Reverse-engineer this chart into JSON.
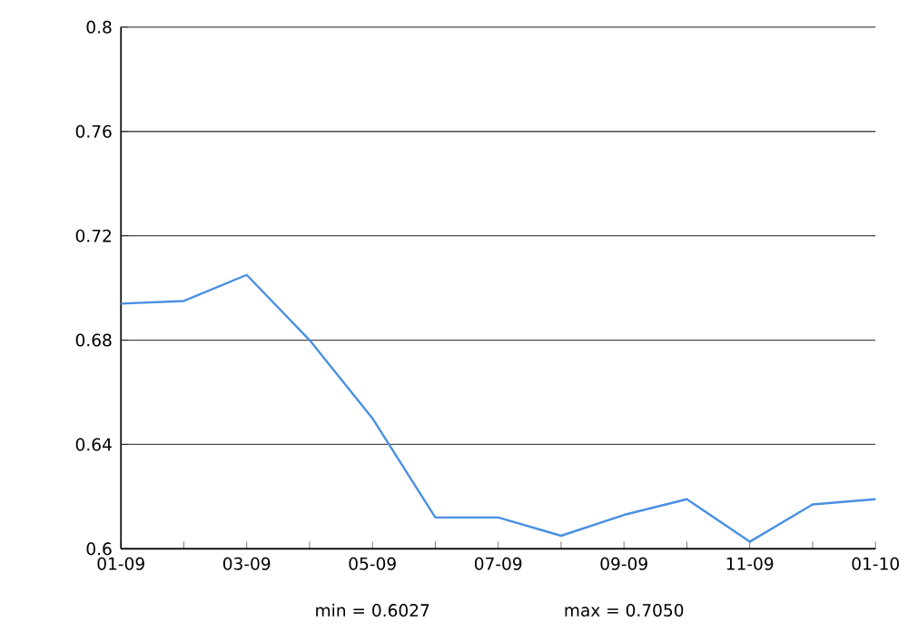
{
  "chart_data": {
    "type": "line",
    "categories": [
      "01-09",
      null,
      "03-09",
      null,
      "05-09",
      null,
      "07-09",
      null,
      "09-09",
      null,
      "11-09",
      null,
      "01-10"
    ],
    "series": [
      {
        "color": "#4a90e2",
        "values": [
          0.694,
          0.695,
          0.705,
          0.68,
          0.65,
          0.612,
          0.612,
          0.605,
          0.613,
          0.619,
          0.6027,
          0.617,
          0.619
        ]
      }
    ],
    "ylim": [
      0.6,
      0.8
    ],
    "yticks": [
      0.6,
      0.64,
      0.68,
      0.72,
      0.76,
      0.8
    ],
    "grid": "y",
    "marker": "none",
    "line_style": "solid",
    "annotations": [
      "min = 0.6027",
      "max = 0.7050"
    ]
  }
}
